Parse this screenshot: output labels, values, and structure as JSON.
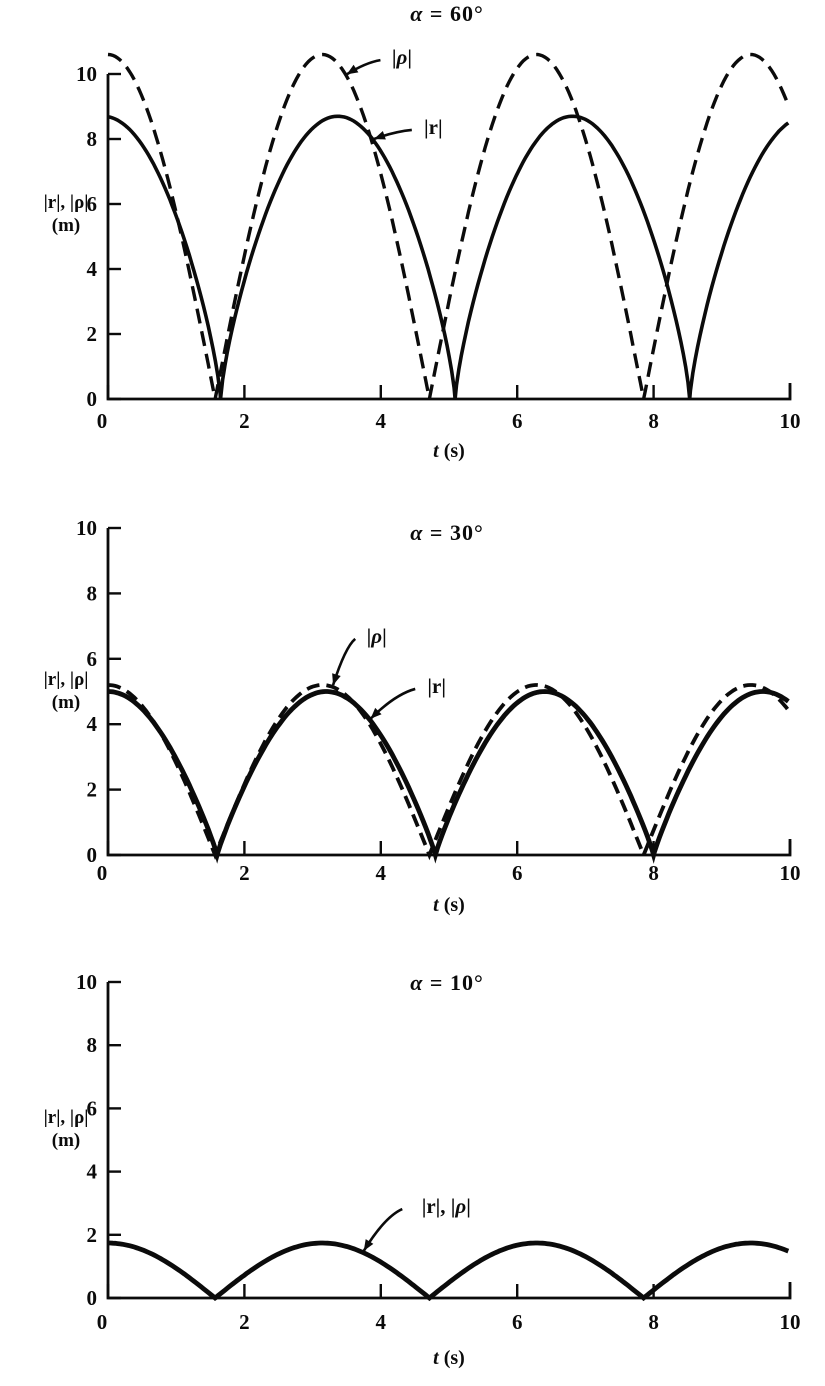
{
  "page": {
    "background": "#ffffff",
    "ink_color": "#0b0b0b"
  },
  "chart_data": [
    {
      "id": "alpha-60",
      "type": "line",
      "title_alpha": "α",
      "title_eq": "= 60°",
      "xlabel_var": "t",
      "xlabel_unit": "(s)",
      "ylabel_line1": "|r|, |ρ|",
      "ylabel_line2": "(m)",
      "xlim": [
        0,
        10
      ],
      "ylim": [
        0,
        10
      ],
      "xticks": [
        0,
        2,
        4,
        6,
        8,
        10
      ],
      "yticks": [
        0,
        2,
        4,
        6,
        8,
        10
      ],
      "grid": false,
      "series": [
        {
          "name": "|r|",
          "style": "solid",
          "amplitude": 8.7,
          "zeros": [
            -1.79,
            1.65,
            5.09,
            8.53,
            11.97
          ],
          "shape": 0.75,
          "key_points": [
            [
              0,
              8.7
            ],
            [
              1.65,
              0
            ],
            [
              3.37,
              8.7
            ],
            [
              5.09,
              0
            ],
            [
              6.81,
              8.7
            ],
            [
              8.53,
              0
            ],
            [
              10,
              8.5
            ]
          ]
        },
        {
          "name": "|ρ|",
          "style": "dashed",
          "amplitude": 10.6,
          "zeros": [
            -1.5708,
            1.5708,
            4.7124,
            7.854,
            10.9956
          ],
          "shape": 1.0,
          "key_points": [
            [
              0,
              10.6
            ],
            [
              1.57,
              0
            ],
            [
              3.14,
              10.6
            ],
            [
              4.71,
              0
            ],
            [
              6.28,
              10.6
            ],
            [
              7.85,
              0
            ],
            [
              9.42,
              10.6
            ],
            [
              10,
              8.9
            ]
          ]
        }
      ],
      "annotations": [
        {
          "label": "|ρ|",
          "label_t": 4.31,
          "label_v": 10.52,
          "tip_t": 3.5,
          "series": 1
        },
        {
          "label": "|r|",
          "label_t": 4.77,
          "label_v": 8.37,
          "tip_t": 3.9,
          "series": 0
        }
      ]
    },
    {
      "id": "alpha-30",
      "type": "line",
      "title_alpha": "α",
      "title_eq": "= 30°",
      "xlabel_var": "t",
      "xlabel_unit": "(s)",
      "ylabel_line1": "|r|, |ρ|",
      "ylabel_line2": "(m)",
      "xlim": [
        0,
        10
      ],
      "ylim": [
        0,
        10
      ],
      "xticks": [
        0,
        2,
        4,
        6,
        8,
        10
      ],
      "yticks": [
        0,
        2,
        4,
        6,
        8,
        10
      ],
      "grid": false,
      "series": [
        {
          "name": "|r|",
          "style": "solid",
          "amplitude": 5.0,
          "zeros": [
            -1.6,
            1.6,
            4.8,
            8.0,
            11.2
          ],
          "shape": 0.9,
          "key_points": [
            [
              0,
              5.0
            ],
            [
              1.6,
              0
            ],
            [
              3.2,
              5.0
            ],
            [
              4.8,
              0
            ],
            [
              6.4,
              5.0
            ],
            [
              8.0,
              0
            ],
            [
              9.6,
              5.0
            ],
            [
              10,
              4.6
            ]
          ]
        },
        {
          "name": "|ρ|",
          "style": "dashed",
          "amplitude": 5.2,
          "zeros": [
            -1.5708,
            1.5708,
            4.7124,
            7.854,
            10.9956
          ],
          "shape": 1.0,
          "key_points": [
            [
              0,
              5.2
            ],
            [
              1.57,
              0
            ],
            [
              3.14,
              5.2
            ],
            [
              4.71,
              0
            ],
            [
              6.28,
              5.2
            ],
            [
              7.85,
              0
            ],
            [
              9.42,
              5.2
            ],
            [
              10,
              4.4
            ]
          ]
        }
      ],
      "annotations": [
        {
          "label": "|ρ|",
          "label_t": 3.94,
          "label_v": 6.7,
          "tip_t": 3.3,
          "series": 1
        },
        {
          "label": "|r|",
          "label_t": 4.82,
          "label_v": 5.17,
          "tip_t": 3.85,
          "series": 0
        }
      ]
    },
    {
      "id": "alpha-10",
      "type": "line",
      "title_alpha": "α",
      "title_eq": "= 10°",
      "xlabel_var": "t",
      "xlabel_unit": "(s)",
      "ylabel_line1": "|r|, |ρ|",
      "ylabel_line2": "(m)",
      "xlim": [
        0,
        10
      ],
      "ylim": [
        0,
        10
      ],
      "xticks": [
        0,
        2,
        4,
        6,
        8,
        10
      ],
      "yticks": [
        0,
        2,
        4,
        6,
        8,
        10
      ],
      "grid": false,
      "series": [
        {
          "name": "|r|, |ρ|",
          "style": "solid",
          "amplitude": 1.74,
          "zeros": [
            -1.5708,
            1.5708,
            4.7124,
            7.854,
            10.9956
          ],
          "shape": 1.0,
          "key_points": [
            [
              0,
              1.74
            ],
            [
              1.57,
              0
            ],
            [
              3.14,
              1.74
            ],
            [
              4.71,
              0
            ],
            [
              6.28,
              1.74
            ],
            [
              7.85,
              0
            ],
            [
              9.42,
              1.74
            ],
            [
              10,
              1.46
            ]
          ]
        }
      ],
      "annotations": [
        {
          "label": "|r|, |ρ|",
          "label_t": 4.96,
          "label_v": 2.91,
          "tip_t": 3.75,
          "series": 0
        }
      ]
    }
  ]
}
